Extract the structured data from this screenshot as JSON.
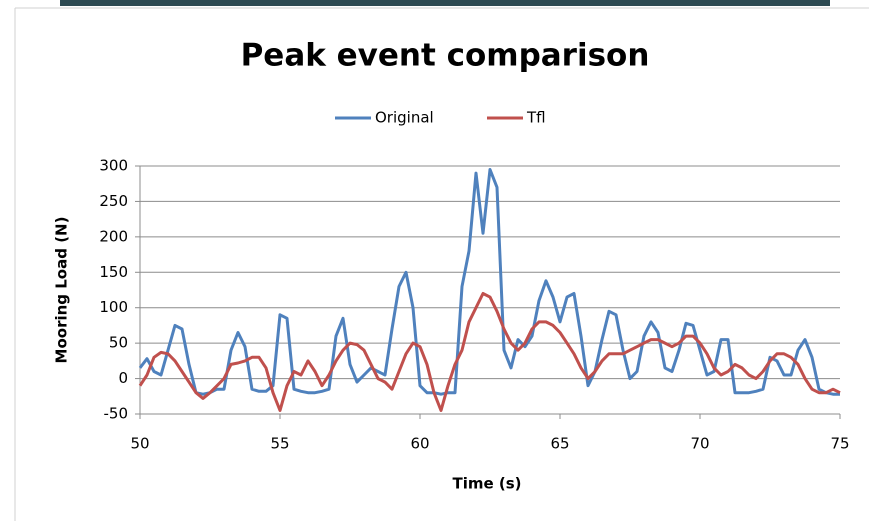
{
  "chart_data": {
    "type": "line",
    "title": "Peak event comparison",
    "x_label": "Time (s)",
    "y_label": "Mooring Load (N)",
    "x": [
      50,
      50.25,
      50.5,
      50.75,
      51,
      51.25,
      51.5,
      51.75,
      52,
      52.25,
      52.5,
      52.75,
      53,
      53.25,
      53.5,
      53.75,
      54,
      54.25,
      54.5,
      54.75,
      55,
      55.25,
      55.5,
      55.75,
      56,
      56.25,
      56.5,
      56.75,
      57,
      57.25,
      57.5,
      57.75,
      58,
      58.25,
      58.5,
      58.75,
      59,
      59.25,
      59.5,
      59.75,
      60,
      60.25,
      60.5,
      60.75,
      61,
      61.25,
      61.5,
      61.75,
      62,
      62.25,
      62.5,
      62.75,
      63,
      63.25,
      63.5,
      63.75,
      64,
      64.25,
      64.5,
      64.75,
      65,
      65.25,
      65.5,
      65.75,
      66,
      66.25,
      66.5,
      66.75,
      67,
      67.25,
      67.5,
      67.75,
      68,
      68.25,
      68.5,
      68.75,
      69,
      69.25,
      69.5,
      69.75,
      70,
      70.25,
      70.5,
      70.75,
      71,
      71.25,
      71.5,
      71.75,
      72,
      72.25,
      72.5,
      72.75,
      73,
      73.25,
      73.5,
      73.75,
      74,
      74.25,
      74.5,
      74.75,
      75
    ],
    "series": [
      {
        "name": "Original",
        "color": "#4f81bd",
        "values": [
          15,
          28,
          10,
          5,
          40,
          75,
          70,
          20,
          -20,
          -22,
          -20,
          -15,
          -15,
          40,
          65,
          45,
          -15,
          -18,
          -18,
          -10,
          90,
          85,
          -15,
          -18,
          -20,
          -20,
          -18,
          -15,
          60,
          85,
          20,
          -5,
          5,
          15,
          10,
          5,
          70,
          130,
          150,
          100,
          -10,
          -20,
          -20,
          -22,
          -20,
          -20,
          130,
          180,
          290,
          205,
          295,
          270,
          40,
          15,
          55,
          45,
          60,
          110,
          138,
          115,
          80,
          115,
          120,
          60,
          -10,
          10,
          55,
          95,
          90,
          40,
          0,
          10,
          60,
          80,
          65,
          15,
          10,
          40,
          78,
          75,
          40,
          5,
          10,
          55,
          55,
          -20,
          -20,
          -20,
          -18,
          -15,
          30,
          25,
          5,
          5,
          40,
          55,
          30,
          -15,
          -20,
          -22,
          -22
        ]
      },
      {
        "name": "Tfl",
        "color": "#c0504d",
        "values": [
          -10,
          5,
          30,
          37,
          35,
          25,
          10,
          -5,
          -20,
          -28,
          -20,
          -10,
          0,
          20,
          22,
          25,
          30,
          30,
          15,
          -20,
          -45,
          -10,
          10,
          5,
          25,
          10,
          -10,
          5,
          25,
          40,
          50,
          48,
          40,
          20,
          0,
          -5,
          -15,
          10,
          35,
          50,
          45,
          20,
          -20,
          -45,
          -10,
          20,
          40,
          80,
          100,
          120,
          115,
          95,
          70,
          50,
          40,
          50,
          70,
          80,
          80,
          75,
          65,
          50,
          35,
          15,
          0,
          10,
          25,
          35,
          35,
          35,
          40,
          45,
          50,
          55,
          55,
          50,
          45,
          50,
          60,
          60,
          50,
          35,
          15,
          5,
          10,
          20,
          15,
          5,
          0,
          10,
          25,
          35,
          35,
          30,
          20,
          0,
          -15,
          -20,
          -20,
          -15,
          -20
        ]
      }
    ],
    "xlim": [
      50,
      75
    ],
    "ylim": [
      -50,
      300
    ],
    "xticks": [
      50,
      55,
      60,
      65,
      70,
      75
    ],
    "yticks": [
      -50,
      0,
      50,
      100,
      150,
      200,
      250,
      300
    ],
    "grid": true,
    "legend": "top"
  }
}
